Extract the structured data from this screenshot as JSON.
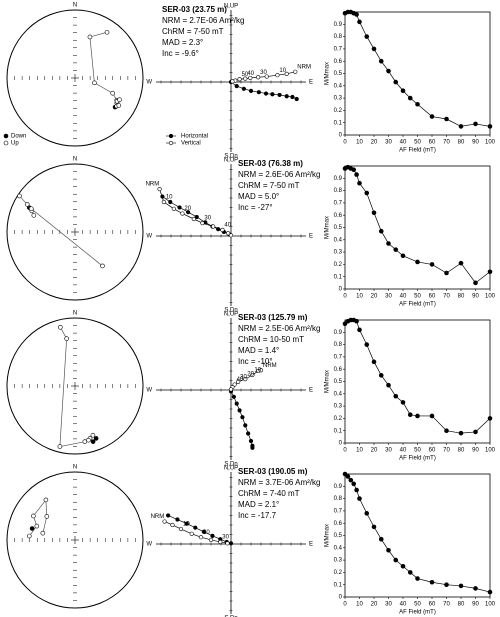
{
  "chart_data": [
    {
      "type": "stereonet",
      "north_label": "N",
      "series": [
        {
          "name": "Down",
          "fill": "#000000",
          "x": [
            126
          ],
          "values": [
            28
          ]
        },
        {
          "name": "Up",
          "fill": "#ffffff",
          "x": [
            35,
            20,
            104,
            112,
            118,
            121,
            124,
            119,
            116,
            122
          ],
          "values": [
            -19,
            -36,
            -66,
            -40,
            -31,
            -29,
            -27,
            -30,
            -28,
            -25
          ]
        }
      ]
    },
    {
      "type": "zijderveld",
      "title": "SER-03 (23.75 m)",
      "annotations": [
        "NRM = 2.7E-06 Am²/kg",
        "ChRM = 7-50 mT",
        "MAD = 2.3°",
        "Inc = -9.6°"
      ],
      "axis_labels": {
        "top": "N,UP",
        "bottom": "S,Dn",
        "left": "W",
        "right": "E"
      },
      "xlim": [
        -1.05,
        1.05
      ],
      "ylim": [
        -1,
        1
      ],
      "series": [
        {
          "name": "Horizontal",
          "fill": "#000000",
          "x": [
            0,
            0.08,
            0.18,
            0.28,
            0.39,
            0.49,
            0.58,
            0.68,
            0.78,
            0.86,
            0.92
          ],
          "values": [
            0,
            -0.06,
            -0.1,
            -0.13,
            -0.15,
            -0.17,
            -0.18,
            -0.19,
            -0.21,
            -0.22,
            -0.25
          ]
        },
        {
          "name": "Vertical",
          "fill": "#ffffff",
          "x": [
            0.9,
            0.78,
            0.65,
            0.5,
            0.38,
            0.27,
            0.2,
            0.12,
            0.06,
            0.02
          ],
          "values": [
            0.15,
            0.12,
            0.1,
            0.08,
            0.07,
            0.06,
            0.05,
            0.04,
            0.02,
            0.01
          ],
          "point_labels": [
            "NRM",
            null,
            "10",
            null,
            "30",
            null,
            "40",
            "50",
            null,
            null
          ]
        }
      ]
    },
    {
      "type": "line",
      "xlabel": "AF Field (mT)",
      "ylabel": "M/Mmax",
      "xlim": [
        0,
        100
      ],
      "ylim": [
        0,
        1
      ],
      "xticks": [
        0,
        10,
        20,
        30,
        40,
        50,
        60,
        70,
        80,
        90,
        100
      ],
      "yticks": [
        0,
        0.1,
        0.2,
        0.3,
        0.4,
        0.5,
        0.6,
        0.7,
        0.8,
        0.9
      ],
      "x": [
        0,
        2,
        4,
        6,
        8,
        10,
        15,
        20,
        25,
        30,
        35,
        40,
        45,
        50,
        60,
        70,
        80,
        90,
        100
      ],
      "values": [
        0.99,
        1,
        1,
        0.99,
        0.98,
        0.92,
        0.8,
        0.7,
        0.6,
        0.52,
        0.43,
        0.36,
        0.3,
        0.25,
        0.15,
        0.13,
        0.07,
        0.09,
        0.07
      ]
    },
    {
      "type": "stereonet",
      "north_label": "N",
      "series": [
        {
          "fill": "#000000",
          "x": [
            298
          ],
          "values": [
            25
          ]
        },
        {
          "fill": "#ffffff",
          "x": [
            303,
            300,
            296,
            292,
            298,
            141
          ],
          "values": [
            -3,
            -20,
            -30,
            -35,
            -28,
            -36
          ]
        }
      ]
    },
    {
      "type": "zijderveld",
      "title": "SER-03 (76.38 m)",
      "annotations": [
        "NRM = 2.6E-06 Am²/kg",
        "ChRM = 7-50 mT",
        "MAD = 5.0°",
        "Inc = -27°"
      ],
      "axis_labels": {
        "top": "N,UP",
        "bottom": "S,Dn",
        "left": "W",
        "right": "E"
      },
      "xlim": [
        -1.05,
        1.05
      ],
      "ylim": [
        -1,
        1
      ],
      "series": [
        {
          "fill": "#000000",
          "x": [
            -0.96,
            -0.85,
            -0.72,
            -0.6,
            -0.48,
            -0.36,
            -0.26,
            -0.18,
            -0.1,
            -0.02
          ],
          "values": [
            0.58,
            0.5,
            0.42,
            0.35,
            0.28,
            0.2,
            0.14,
            0.1,
            0.06,
            0.02
          ]
        },
        {
          "fill": "#ffffff",
          "x": [
            -1.0,
            -0.94,
            -0.8,
            -0.68,
            -0.52,
            -0.4,
            -0.25,
            -0.12,
            -0.04,
            0
          ],
          "values": [
            0.69,
            0.5,
            0.4,
            0.33,
            0.25,
            0.19,
            0.14,
            0.09,
            0.04,
            0.01
          ],
          "point_labels": [
            "NRM",
            "10",
            null,
            "20",
            null,
            "30",
            null,
            "40",
            null,
            null
          ]
        }
      ]
    },
    {
      "type": "line",
      "xlabel": "AF Field (mT)",
      "ylabel": "M/Mmax",
      "xlim": [
        0,
        100
      ],
      "ylim": [
        0,
        1
      ],
      "xticks": [
        0,
        10,
        20,
        30,
        40,
        50,
        60,
        70,
        80,
        90,
        100
      ],
      "yticks": [
        0,
        0.1,
        0.2,
        0.3,
        0.4,
        0.5,
        0.6,
        0.7,
        0.8,
        0.9
      ],
      "x": [
        0,
        2,
        4,
        6,
        8,
        10,
        15,
        20,
        25,
        30,
        35,
        40,
        50,
        60,
        70,
        80,
        90,
        100
      ],
      "values": [
        0.98,
        0.99,
        0.98,
        0.97,
        0.93,
        0.86,
        0.78,
        0.62,
        0.47,
        0.37,
        0.32,
        0.27,
        0.22,
        0.2,
        0.13,
        0.21,
        0.05,
        0.14
      ]
    },
    {
      "type": "stereonet",
      "north_label": "N",
      "series": [
        {
          "fill": "#000000",
          "x": [
            162,
            158
          ],
          "values": [
            15,
            18
          ]
        },
        {
          "fill": "#ffffff",
          "x": [
            346,
            350,
            194,
            170,
            164,
            160,
            166
          ],
          "values": [
            -12,
            -30,
            -9,
            -18,
            -21,
            -24,
            -19
          ]
        }
      ]
    },
    {
      "type": "zijderveld",
      "title": "SER-03 (125.79 m)",
      "annotations": [
        "NRM = 2.5E-06 Am²/kg",
        "ChRM = 10-50 mT",
        "MAD = 1.4°",
        "Inc = -10°"
      ],
      "axis_labels": {
        "top": "N,UP",
        "bottom": "S,Dn",
        "left": "W",
        "right": "E"
      },
      "xlim": [
        -1.05,
        1.05
      ],
      "ylim": [
        -1,
        1
      ],
      "series": [
        {
          "fill": "#000000",
          "x": [
            0,
            0.04,
            0.08,
            0.12,
            0.16,
            0.2,
            0.24,
            0.28,
            0.3,
            0.3
          ],
          "values": [
            -0.02,
            -0.1,
            -0.2,
            -0.3,
            -0.4,
            -0.52,
            -0.64,
            -0.75,
            -0.82,
            -0.85
          ]
        },
        {
          "fill": "#ffffff",
          "x": [
            0.42,
            0.38,
            0.3,
            0.2,
            0.1,
            0.05,
            0.02,
            0
          ],
          "values": [
            0.29,
            0.28,
            0.22,
            0.16,
            0.12,
            0.08,
            0.04,
            0.01
          ],
          "point_labels": [
            "NRM",
            null,
            "10",
            "20",
            "30",
            "40",
            null,
            null
          ]
        }
      ]
    },
    {
      "type": "line",
      "xlabel": "AF Field (mT)",
      "ylabel": "M/Mmax",
      "xlim": [
        0,
        100
      ],
      "ylim": [
        0,
        1
      ],
      "xticks": [
        0,
        10,
        20,
        30,
        40,
        50,
        60,
        70,
        80,
        90,
        100
      ],
      "yticks": [
        0,
        0.1,
        0.2,
        0.3,
        0.4,
        0.5,
        0.6,
        0.7,
        0.8,
        0.9
      ],
      "x": [
        0,
        2,
        4,
        6,
        8,
        10,
        15,
        20,
        25,
        30,
        35,
        40,
        45,
        50,
        60,
        70,
        80,
        90,
        100
      ],
      "values": [
        0.97,
        0.99,
        1,
        1,
        0.99,
        0.92,
        0.8,
        0.66,
        0.55,
        0.47,
        0.38,
        0.33,
        0.23,
        0.22,
        0.22,
        0.1,
        0.08,
        0.09,
        0.2
      ]
    },
    {
      "type": "stereonet",
      "north_label": "N",
      "series": [
        {
          "fill": "#000000",
          "x": [
            285
          ],
          "values": [
            35
          ]
        },
        {
          "fill": "#ffffff",
          "x": [
            275,
            290,
            300,
            324,
            310,
            282
          ],
          "values": [
            -33,
            -40,
            -30,
            -28,
            -45,
            -50
          ]
        }
      ]
    },
    {
      "type": "zijderveld",
      "title": "SER-03 (190.05 m)",
      "annotations": [
        "NRM = 3.7E-06 Am²/kg",
        "ChRM = 7-40 mT",
        "MAD = 2.1°",
        "Inc = -17.7"
      ],
      "axis_labels": {
        "top": "N,UP",
        "bottom": "S,Dn",
        "left": "W",
        "right": "E"
      },
      "xlim": [
        -1.05,
        1.05
      ],
      "ylim": [
        -1,
        1
      ],
      "series": [
        {
          "fill": "#000000",
          "x": [
            -0.88,
            -0.75,
            -0.62,
            -0.5,
            -0.38,
            -0.26,
            -0.15,
            -0.06,
            0
          ],
          "values": [
            0.42,
            0.36,
            0.3,
            0.24,
            0.18,
            0.12,
            0.07,
            0.03,
            0.01
          ]
        },
        {
          "fill": "#ffffff",
          "x": [
            -0.93,
            -0.82,
            -0.7,
            -0.55,
            -0.42,
            -0.28,
            -0.15,
            -0.05
          ],
          "values": [
            0.33,
            0.28,
            0.22,
            0.15,
            0.1,
            0.06,
            0.03,
            0.01
          ],
          "point_labels": [
            "NRM",
            null,
            "10",
            null,
            "20",
            null,
            "30",
            null
          ]
        }
      ]
    },
    {
      "type": "line",
      "xlabel": "AF Field (mT)",
      "ylabel": "M/Mmax",
      "xlim": [
        0,
        100
      ],
      "ylim": [
        0,
        1
      ],
      "xticks": [
        0,
        10,
        20,
        30,
        40,
        50,
        60,
        70,
        80,
        90,
        100
      ],
      "yticks": [
        0,
        0.1,
        0.2,
        0.3,
        0.4,
        0.5,
        0.6,
        0.7,
        0.8,
        0.9
      ],
      "x": [
        0,
        2,
        4,
        6,
        8,
        10,
        15,
        20,
        25,
        30,
        35,
        40,
        45,
        50,
        60,
        70,
        80,
        90,
        100
      ],
      "values": [
        1,
        0.98,
        0.95,
        0.92,
        0.87,
        0.8,
        0.68,
        0.57,
        0.47,
        0.38,
        0.3,
        0.25,
        0.2,
        0.15,
        0.12,
        0.1,
        0.09,
        0.07,
        0.04
      ]
    }
  ]
}
